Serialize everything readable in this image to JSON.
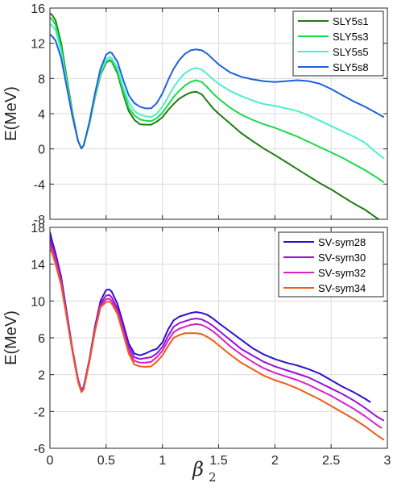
{
  "chart_data": [
    {
      "type": "line",
      "ylabel": "E(MeV)",
      "xlabel_symbol": "β",
      "xlabel_subscript": "2",
      "xlim": [
        0,
        3
      ],
      "ylim": [
        -8,
        16
      ],
      "xticks": [
        "0",
        "0.5",
        "1",
        "1.5",
        "2",
        "2.5",
        "3"
      ],
      "yticks": [
        "-8",
        "-4",
        "0",
        "4",
        "8",
        "12",
        "16"
      ],
      "ytick_values": [
        -8,
        -4,
        0,
        4,
        8,
        12,
        16
      ],
      "grid": true,
      "legend_position": "top-right",
      "series": [
        {
          "name": "SLY5s1",
          "color": "#1d7d10",
          "x": [
            0,
            0.02,
            0.05,
            0.1,
            0.15,
            0.2,
            0.25,
            0.28,
            0.3,
            0.35,
            0.4,
            0.45,
            0.5,
            0.53,
            0.55,
            0.6,
            0.65,
            0.7,
            0.75,
            0.8,
            0.85,
            0.9,
            0.95,
            1,
            1.05,
            1.1,
            1.15,
            1.2,
            1.25,
            1.3,
            1.35,
            1.4,
            1.45,
            1.5,
            1.6,
            1.7,
            1.8,
            1.9,
            2,
            2.1,
            2.2,
            2.3,
            2.4,
            2.5,
            2.6,
            2.7,
            2.8,
            2.9,
            2.97
          ],
          "y": [
            15.4,
            15.2,
            14.6,
            12,
            8,
            4.2,
            0.9,
            0.05,
            0.4,
            2.8,
            5.8,
            8.4,
            9.8,
            10.05,
            9.9,
            8.6,
            6.3,
            4.3,
            3.3,
            2.8,
            2.75,
            2.75,
            3.1,
            3.6,
            4.4,
            5.1,
            5.7,
            6.1,
            6.4,
            6.5,
            6.2,
            5.4,
            4.6,
            4,
            2.9,
            1.8,
            0.9,
            0.05,
            -0.7,
            -1.5,
            -2.3,
            -3.1,
            -3.9,
            -4.6,
            -5.4,
            -6.2,
            -6.9,
            -7.8,
            -8.4
          ]
        },
        {
          "name": "SLY5s3",
          "color": "#19d94b",
          "x": [
            0,
            0.02,
            0.05,
            0.1,
            0.15,
            0.2,
            0.25,
            0.28,
            0.3,
            0.35,
            0.4,
            0.45,
            0.5,
            0.53,
            0.55,
            0.6,
            0.65,
            0.7,
            0.75,
            0.8,
            0.85,
            0.9,
            0.95,
            1,
            1.05,
            1.1,
            1.15,
            1.2,
            1.25,
            1.3,
            1.35,
            1.4,
            1.45,
            1.5,
            1.6,
            1.7,
            1.8,
            1.9,
            2,
            2.1,
            2.2,
            2.3,
            2.4,
            2.5,
            2.6,
            2.7,
            2.8,
            2.9,
            2.97
          ],
          "y": [
            14.9,
            14.7,
            14.1,
            11.5,
            7.7,
            4,
            0.9,
            0.05,
            0.4,
            2.8,
            5.9,
            8.5,
            9.9,
            10.15,
            10,
            8.8,
            6.6,
            4.7,
            3.8,
            3.35,
            3.2,
            3.15,
            3.5,
            4.1,
            5,
            5.9,
            6.6,
            7.2,
            7.6,
            7.8,
            7.6,
            7,
            6.3,
            5.7,
            4.7,
            3.9,
            3.3,
            2.8,
            2.4,
            1.9,
            1.4,
            0.8,
            0.2,
            -0.4,
            -1,
            -1.7,
            -2.4,
            -3.2,
            -3.8
          ]
        },
        {
          "name": "SLY5s5",
          "color": "#4deecb",
          "x": [
            0,
            0.02,
            0.05,
            0.1,
            0.15,
            0.2,
            0.25,
            0.28,
            0.3,
            0.35,
            0.4,
            0.45,
            0.5,
            0.53,
            0.55,
            0.6,
            0.65,
            0.7,
            0.75,
            0.8,
            0.85,
            0.9,
            0.95,
            1,
            1.05,
            1.1,
            1.15,
            1.2,
            1.25,
            1.3,
            1.35,
            1.4,
            1.45,
            1.5,
            1.6,
            1.7,
            1.8,
            1.9,
            2,
            2.1,
            2.2,
            2.3,
            2.4,
            2.5,
            2.6,
            2.7,
            2.8,
            2.9,
            2.97
          ],
          "y": [
            14.2,
            14,
            13.5,
            11,
            7.4,
            3.9,
            0.9,
            0.05,
            0.4,
            2.9,
            6,
            8.7,
            10.2,
            10.45,
            10.3,
            9.2,
            7.1,
            5.3,
            4.3,
            3.9,
            3.7,
            3.6,
            4,
            4.8,
            5.9,
            7,
            7.9,
            8.6,
            9,
            9.2,
            9,
            8.5,
            7.9,
            7.4,
            6.6,
            6,
            5.5,
            5.1,
            4.9,
            4.6,
            4.3,
            3.8,
            3.2,
            2.6,
            2,
            1.4,
            0.7,
            -0.4,
            -1.1
          ]
        },
        {
          "name": "SLY5s8",
          "color": "#1f5fe0",
          "x": [
            0,
            0.02,
            0.05,
            0.1,
            0.15,
            0.2,
            0.25,
            0.28,
            0.3,
            0.35,
            0.4,
            0.45,
            0.5,
            0.53,
            0.55,
            0.6,
            0.65,
            0.7,
            0.75,
            0.8,
            0.85,
            0.9,
            0.95,
            1,
            1.05,
            1.1,
            1.15,
            1.2,
            1.25,
            1.3,
            1.35,
            1.4,
            1.45,
            1.5,
            1.6,
            1.7,
            1.8,
            1.9,
            2,
            2.1,
            2.2,
            2.3,
            2.4,
            2.5,
            2.6,
            2.7,
            2.8,
            2.9,
            2.97
          ],
          "y": [
            13,
            12.8,
            12.3,
            10.3,
            7,
            3.7,
            0.9,
            0.05,
            0.4,
            3,
            6.3,
            9.1,
            10.7,
            11,
            10.9,
            9.9,
            7.9,
            6.1,
            5.2,
            4.8,
            4.6,
            4.6,
            5.2,
            6.3,
            7.8,
            9.1,
            10.1,
            10.8,
            11.2,
            11.3,
            11.2,
            10.8,
            10.2,
            9.6,
            8.7,
            8.2,
            7.9,
            7.7,
            7.6,
            7.7,
            7.8,
            7.7,
            7.4,
            6.8,
            6.1,
            5.4,
            4.8,
            4.1,
            3.6
          ]
        }
      ]
    },
    {
      "type": "line",
      "ylabel": "E(MeV)",
      "xlabel_symbol": "β",
      "xlabel_subscript": "2",
      "xlim": [
        0,
        3
      ],
      "ylim": [
        -6,
        18
      ],
      "xticks": [
        "0",
        "0.5",
        "1",
        "1.5",
        "2",
        "2.5",
        "3"
      ],
      "yticks": [
        "-6",
        "-2",
        "2",
        "6",
        "10",
        "14",
        "18"
      ],
      "ytick_values": [
        -6,
        -2,
        2,
        6,
        10,
        14,
        18
      ],
      "grid": true,
      "legend_position": "top-right",
      "series": [
        {
          "name": "SV-sym28",
          "color": "#2d10cf",
          "x": [
            0,
            0.02,
            0.05,
            0.1,
            0.15,
            0.2,
            0.25,
            0.28,
            0.3,
            0.35,
            0.4,
            0.45,
            0.5,
            0.53,
            0.55,
            0.6,
            0.65,
            0.7,
            0.75,
            0.8,
            0.85,
            0.9,
            0.95,
            1,
            1.05,
            1.1,
            1.15,
            1.2,
            1.25,
            1.3,
            1.35,
            1.4,
            1.45,
            1.5,
            1.6,
            1.7,
            1.8,
            1.9,
            2,
            2.1,
            2.2,
            2.3,
            2.4,
            2.5,
            2.6,
            2.7,
            2.8,
            2.85
          ],
          "y": [
            17.5,
            16.5,
            15.2,
            12.6,
            8.7,
            4.8,
            1.5,
            0.3,
            0.7,
            3.6,
            7.2,
            10,
            11.2,
            11.25,
            11,
            9.7,
            7.6,
            5.4,
            4.3,
            4.1,
            4.3,
            4.6,
            4.8,
            5.5,
            6.9,
            7.9,
            8.3,
            8.5,
            8.7,
            8.8,
            8.7,
            8.5,
            8.1,
            7.6,
            6.7,
            5.8,
            4.9,
            4.2,
            3.7,
            3.3,
            3,
            2.6,
            2.1,
            1.4,
            0.7,
            0.1,
            -0.6,
            -1
          ]
        },
        {
          "name": "SV-sym30",
          "color": "#9b10d6",
          "x": [
            0,
            0.02,
            0.05,
            0.1,
            0.15,
            0.2,
            0.25,
            0.28,
            0.3,
            0.35,
            0.4,
            0.45,
            0.5,
            0.53,
            0.55,
            0.6,
            0.65,
            0.7,
            0.75,
            0.8,
            0.85,
            0.9,
            0.95,
            1,
            1.05,
            1.1,
            1.15,
            1.2,
            1.25,
            1.3,
            1.35,
            1.4,
            1.45,
            1.5,
            1.6,
            1.7,
            1.8,
            1.9,
            2,
            2.1,
            2.2,
            2.3,
            2.4,
            2.5,
            2.6,
            2.7,
            2.8,
            2.9,
            2.97
          ],
          "y": [
            16.8,
            16,
            14.8,
            12.3,
            8.5,
            4.7,
            1.4,
            0.2,
            0.6,
            3.5,
            7,
            9.7,
            10.6,
            10.65,
            10.4,
            9.2,
            7.2,
            5,
            3.9,
            3.7,
            3.8,
            3.9,
            4.3,
            5,
            6.2,
            7.2,
            7.6,
            7.8,
            8,
            8.1,
            8,
            7.7,
            7.3,
            6.8,
            5.8,
            4.8,
            4.1,
            3.4,
            2.9,
            2.5,
            2.1,
            1.7,
            1.1,
            0.5,
            -0.1,
            -0.8,
            -1.6,
            -2.5,
            -3
          ]
        },
        {
          "name": "SV-sym32",
          "color": "#d622c6",
          "x": [
            0,
            0.02,
            0.05,
            0.1,
            0.15,
            0.2,
            0.25,
            0.28,
            0.3,
            0.35,
            0.4,
            0.45,
            0.5,
            0.53,
            0.55,
            0.6,
            0.65,
            0.7,
            0.75,
            0.8,
            0.85,
            0.9,
            0.95,
            1,
            1.05,
            1.1,
            1.15,
            1.2,
            1.25,
            1.3,
            1.35,
            1.4,
            1.45,
            1.5,
            1.6,
            1.7,
            1.8,
            1.9,
            2,
            2.1,
            2.2,
            2.3,
            2.4,
            2.5,
            2.6,
            2.7,
            2.8,
            2.9,
            2.95
          ],
          "y": [
            16.2,
            15.6,
            14.4,
            12,
            8.3,
            4.6,
            1.3,
            0.15,
            0.5,
            3.4,
            6.8,
            9.5,
            10.2,
            10.25,
            10,
            8.9,
            6.8,
            4.6,
            3.5,
            3.3,
            3.3,
            3.4,
            3.9,
            4.6,
            5.7,
            6.6,
            7,
            7.2,
            7.4,
            7.5,
            7.4,
            7.1,
            6.7,
            6.2,
            5.1,
            4.2,
            3.4,
            2.7,
            2.2,
            1.8,
            1.4,
            0.9,
            0.3,
            -0.3,
            -1,
            -1.7,
            -2.5,
            -3.4,
            -3.8
          ]
        },
        {
          "name": "SV-sym34",
          "color": "#f05a18",
          "x": [
            0,
            0.02,
            0.05,
            0.1,
            0.15,
            0.2,
            0.25,
            0.28,
            0.3,
            0.35,
            0.4,
            0.45,
            0.5,
            0.53,
            0.55,
            0.6,
            0.65,
            0.7,
            0.75,
            0.8,
            0.85,
            0.9,
            0.95,
            1,
            1.05,
            1.1,
            1.15,
            1.2,
            1.25,
            1.3,
            1.35,
            1.4,
            1.45,
            1.5,
            1.6,
            1.7,
            1.8,
            1.9,
            2,
            2.1,
            2.2,
            2.3,
            2.4,
            2.5,
            2.6,
            2.7,
            2.8,
            2.9,
            2.97
          ],
          "y": [
            15.7,
            15.2,
            14,
            11.7,
            8.1,
            4.5,
            1.2,
            0.1,
            0.4,
            3.3,
            6.7,
            9.3,
            9.9,
            9.95,
            9.7,
            8.6,
            6.5,
            4.3,
            3.1,
            2.9,
            2.85,
            2.9,
            3.4,
            4.1,
            5.1,
            6,
            6.3,
            6.5,
            6.5,
            6.5,
            6.4,
            6.1,
            5.7,
            5.2,
            4.2,
            3.3,
            2.6,
            1.9,
            1.4,
            1,
            0.5,
            -0.1,
            -0.7,
            -1.4,
            -2.1,
            -2.8,
            -3.6,
            -4.5,
            -5.1
          ]
        }
      ]
    }
  ]
}
